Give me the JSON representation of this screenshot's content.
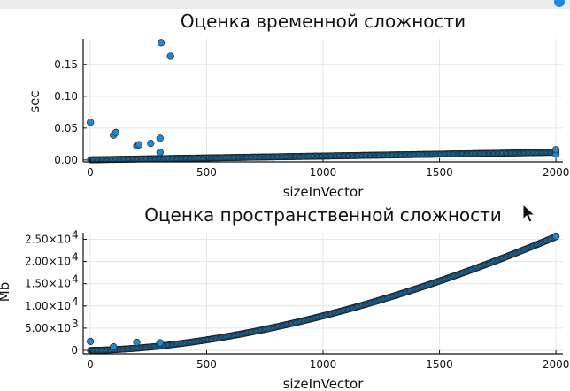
{
  "charts": [
    {
      "title": "Оценка временной сложности",
      "xlabel": "sizeInVector",
      "ylabel": "sec",
      "x_ticks": [
        "0",
        "500",
        "1000",
        "1500",
        "2000"
      ],
      "y_ticks": [
        "0.00",
        "0.05",
        "0.10",
        "0.15"
      ],
      "y_tick_values": [
        0,
        0.05,
        0.1,
        0.15
      ]
    },
    {
      "title": "Оценка пространственной сложности",
      "xlabel": "sizeInVector",
      "ylabel": "Mb",
      "x_ticks": [
        "0",
        "500",
        "1000",
        "1500",
        "2000"
      ],
      "y_ticks": [
        "0",
        "5.00×10",
        "1.00×10",
        "1.50×10",
        "2.00×10",
        "2.50×10"
      ],
      "y_tick_exps": [
        "",
        "3",
        "4",
        "4",
        "4",
        "4"
      ],
      "y_tick_values": [
        0,
        5000,
        10000,
        15000,
        20000,
        25000
      ]
    }
  ],
  "chart_data": [
    {
      "type": "scatter",
      "title": "Оценка временной сложности",
      "xlabel": "sizeInVector",
      "ylabel": "sec",
      "xlim": [
        -30,
        2030
      ],
      "ylim": [
        -0.003,
        0.19
      ],
      "grid": true,
      "marker_color": "#1f8ad0",
      "trend": {
        "x_start": 1,
        "x_end": 2000,
        "y_start": 0.0003,
        "y_end": 0.012
      },
      "outliers": [
        {
          "x": 1,
          "y": 0.059
        },
        {
          "x": 100,
          "y": 0.039
        },
        {
          "x": 110,
          "y": 0.043
        },
        {
          "x": 200,
          "y": 0.022
        },
        {
          "x": 210,
          "y": 0.024
        },
        {
          "x": 260,
          "y": 0.026
        },
        {
          "x": 300,
          "y": 0.034
        },
        {
          "x": 300,
          "y": 0.012
        },
        {
          "x": 305,
          "y": 0.184
        },
        {
          "x": 345,
          "y": 0.163
        },
        {
          "x": 2000,
          "y": 0.009
        },
        {
          "x": 2000,
          "y": 0.016
        }
      ]
    },
    {
      "type": "scatter",
      "title": "Оценка пространственной сложности",
      "xlabel": "sizeInVector",
      "ylabel": "Mb",
      "xlim": [
        -30,
        2030
      ],
      "ylim": [
        -800,
        26500
      ],
      "grid": true,
      "marker_color": "#1f8ad0",
      "trend": {
        "x_start": 1,
        "x_end": 2000,
        "y_start": 0,
        "y_end": 25600,
        "exponent": 1.72
      },
      "outliers": [
        {
          "x": 1,
          "y": 2000
        },
        {
          "x": 100,
          "y": 800
        },
        {
          "x": 200,
          "y": 1800
        },
        {
          "x": 300,
          "y": 1700
        },
        {
          "x": 2000,
          "y": 25700
        }
      ]
    }
  ]
}
